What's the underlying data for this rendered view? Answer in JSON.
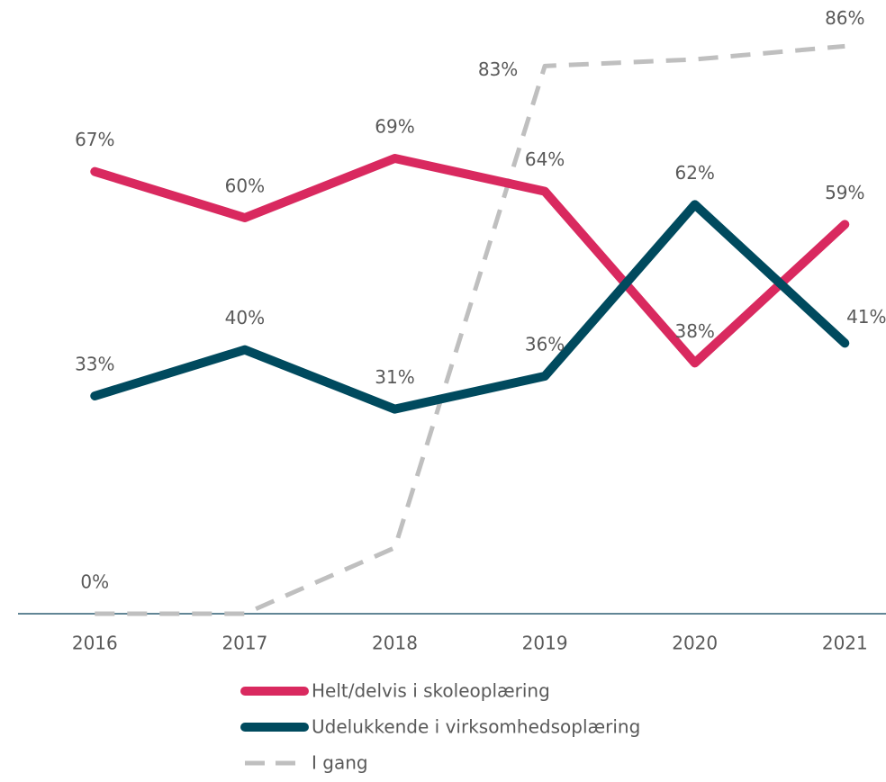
{
  "chart_data": {
    "type": "line",
    "categories": [
      "2016",
      "2017",
      "2018",
      "2019",
      "2020",
      "2021"
    ],
    "ylim": [
      0,
      90
    ],
    "series": [
      {
        "name": "Helt/delvis i skoleoplæring",
        "color": "#d9295f",
        "dash": false,
        "values": [
          67,
          60,
          69,
          64,
          38,
          59
        ],
        "value_labels": [
          "67%",
          "60%",
          "69%",
          "64%",
          "38%",
          "59%"
        ]
      },
      {
        "name": "Udelukkende i virksomhedsoplæring",
        "color": "#004a5e",
        "dash": false,
        "values": [
          33,
          40,
          31,
          36,
          62,
          41
        ],
        "value_labels": [
          "33%",
          "40%",
          "31%",
          "36%",
          "62%",
          "41%"
        ]
      },
      {
        "name": "I gang",
        "color": "#bfbfbf",
        "dash": true,
        "values": [
          0,
          0,
          10,
          83,
          84,
          86
        ],
        "value_labels": [
          "0%",
          null,
          null,
          "83%",
          null,
          "86%"
        ]
      }
    ]
  }
}
